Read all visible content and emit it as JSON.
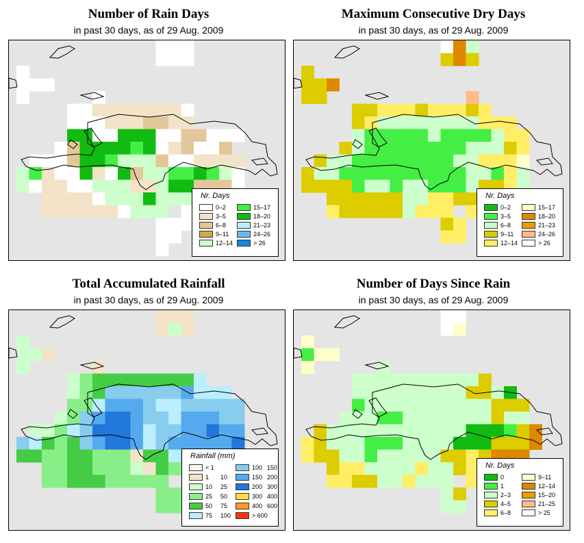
{
  "map_extent": {
    "lon_min": -75.0,
    "lon_max": -67.9,
    "lat_min": 17.0,
    "lat_max": 20.6
  },
  "panels": [
    {
      "title": "Number of Rain Days",
      "subtitle": "in past 30 days, as of  29 Aug. 2009",
      "legend_title": "Nr. Days",
      "legend": [
        {
          "label": "0–2",
          "color": "#ffffff"
        },
        {
          "label": "3–5",
          "color": "#f3e3c8"
        },
        {
          "label": "6–8",
          "color": "#e3c79a"
        },
        {
          "label": "9–11",
          "color": "#d4a846"
        },
        {
          "label": "12–14",
          "color": "#ccffcc"
        },
        {
          "label": "15–17",
          "color": "#44ee44"
        },
        {
          "label": "18–20",
          "color": "#11bb11"
        },
        {
          "label": "21–23",
          "color": "#bbeeff"
        },
        {
          "label": "24–26",
          "color": "#66bbee"
        },
        {
          "label": "> 26",
          "color": "#1188dd"
        }
      ],
      "grid": [
        "...........wAw.....",
        "...........Aww.....",
        "A...............",
        "AAw..............",
        "A.....w.........",
        "....AABBBBBBBA....",
        "....AAABBBCCBB....",
        "....GGAAGGGAACCAAA",
        "...ACGGGGFGABCAAC.",
        ".AAACGGFEEECAABBBB",
        "EFBAAGBAGCEEFFGFEA",
        "EABBAAEEEBBEGGCCCA",
        "..BBBBAEEEGEEEBAB.",
        "..BBBBBBAEEE.AA...",
        "...........AAw....",
        "...........Aw......",
        "...........w......."
      ]
    },
    {
      "title": "Maximum Consecutive Dry Days",
      "subtitle": "in past 30 days, as of  29 Aug. 2009",
      "legend_title": "Nr. Days",
      "legend": [
        {
          "label": "0–2",
          "color": "#11bb11"
        },
        {
          "label": "3–5",
          "color": "#44ee44"
        },
        {
          "label": "6–8",
          "color": "#ccffcc"
        },
        {
          "label": "9–11",
          "color": "#ddcc00"
        },
        {
          "label": "12–14",
          "color": "#ffee66"
        },
        {
          "label": "15–17",
          "color": "#ffffcc"
        },
        {
          "label": "18–20",
          "color": "#dd8800"
        },
        {
          "label": "21–23",
          "color": "#ee9900"
        },
        {
          "label": "24–26",
          "color": "#ffbb88"
        },
        {
          "label": "> 26",
          "color": "#ffffff"
        }
      ],
      "grid": [
        "...........wGC.....",
        "...........DGD.....",
        "D...............",
        "DDG..............",
        "DD...........I...",
        "....DDEEEDEEEDE....",
        "....DECCCCCCCCEEE.",
        "....CBBBBBCBBBBCEE",
        "...DCBBBBBBBBCCCDE",
        ".DCCBBBBBBBBCCEEEF",
        "DCCBBBBBBBBBBCCBEC",
        "DDDDBCCBCCBBBCDDEC",
        "..DDDDDDCCEEDDDDDF",
        "..EDDDDDCEEE.EE...",
        "...........DE.....",
        "...........EE......",
        "..................."
      ]
    },
    {
      "title": "Total Accumulated Rainfall",
      "subtitle": "in past 30 days, as of  29 Aug. 2009",
      "legend_title": "Rainfall (mm)",
      "legend": [
        {
          "lo": "< 1",
          "hi": "",
          "color": "#fff8e8"
        },
        {
          "lo": "1",
          "hi": "10",
          "color": "#f3e3c8"
        },
        {
          "lo": "10",
          "hi": "25",
          "color": "#ccffcc"
        },
        {
          "lo": "25",
          "hi": "50",
          "color": "#88ee88"
        },
        {
          "lo": "50",
          "hi": "75",
          "color": "#44cc44"
        },
        {
          "lo": "75",
          "hi": "100",
          "color": "#bbeeff"
        },
        {
          "lo": "100",
          "hi": "150",
          "color": "#88ccee"
        },
        {
          "lo": "150",
          "hi": "200",
          "color": "#55aaee"
        },
        {
          "lo": "200",
          "hi": "300",
          "color": "#2277dd"
        },
        {
          "lo": "300",
          "hi": "400",
          "color": "#ffdd44"
        },
        {
          "lo": "400",
          "hi": "600",
          "color": "#ff9922"
        },
        {
          "lo": "> 600",
          "hi": "",
          "color": "#ff3311"
        }
      ],
      "grid": [
        "...........BBB.....",
        "...........BCB.....",
        "C...............",
        "CCB..............",
        "C.....B.........",
        "....CDEEEEEEEEF....",
        "....CDEGGGGGGHFFF.",
        "....DDFHHHGFFGGGGG",
        "...CDGHIIHGGFHHHGG",
        ".CCDFGIIIHFGGHHIHH",
        "GFEDEGHIIHFGHHHHHI",
        "EEDDEEDDDBEEFEEFFG",
        "..DDEEDDDCBEDDCDC.",
        "..DDEEEDDDDD.DD...",
        "...........DD.....",
        "...........DD......",
        "..................."
      ]
    },
    {
      "title": "Number of Days Since Rain",
      "subtitle": "in past 30 days, as of  29 Aug. 2009",
      "legend_title": "Nr. Days",
      "legend": [
        {
          "label": "0",
          "color": "#11bb11"
        },
        {
          "label": "1",
          "color": "#44ee44"
        },
        {
          "label": "2–3",
          "color": "#ccffcc"
        },
        {
          "label": "4–5",
          "color": "#ddcc00"
        },
        {
          "label": "6–8",
          "color": "#ffee66"
        },
        {
          "label": "9–11",
          "color": "#ffffcc"
        },
        {
          "label": "12–14",
          "color": "#dd8800"
        },
        {
          "label": "15–20",
          "color": "#ee9900"
        },
        {
          "label": "21–25",
          "color": "#ffbb88"
        },
        {
          "label": "> 25",
          "color": "#ffffff"
        }
      ],
      "grid": [
        "...........ww......",
        "...........wF......",
        "F...............",
        "BFF..............",
        "F.....C.........",
        "....CCCCCCCCCCD....",
        "....CCCCCCCCCDDCA.",
        "....BCCCCCCCCCCDDD",
        "...CCCBBCCCCCCCDCC",
        ".DCCCCCCCCCCCAAABDG",
        "EDCCCBBBCCCCAAADDDG",
        "EDDCCBCCCCCDDEDGGG",
        "..DEECCCCECCDEECCC",
        "..EEDDCCECCC.EE...",
        "...........CD.....",
        "...........CC......",
        "..................."
      ]
    }
  ]
}
